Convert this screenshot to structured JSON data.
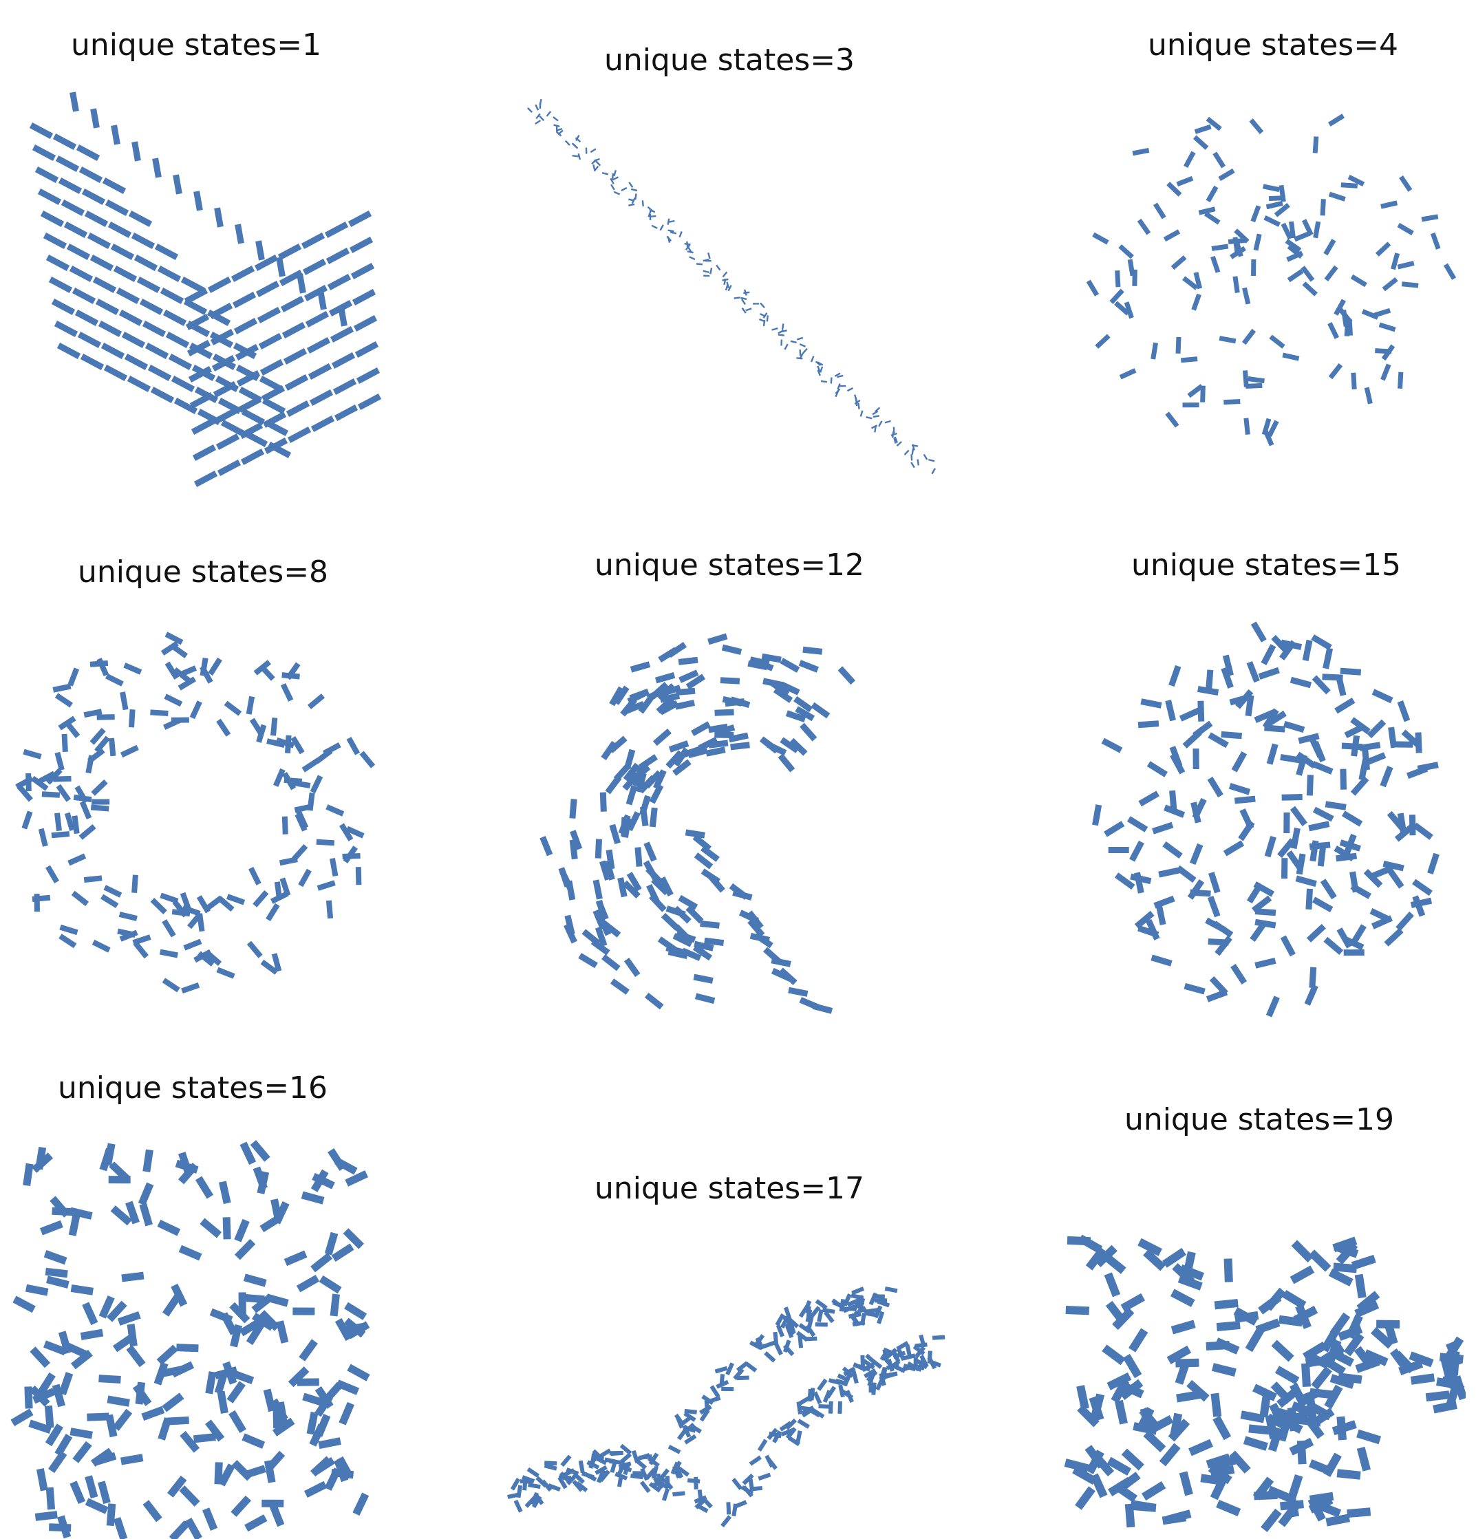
{
  "figure": {
    "mark_color": "#4a78b5",
    "background_color": "#ffffff",
    "panels": [
      {
        "title": "unique states=1",
        "pattern": "layered-stack",
        "seed": 11
      },
      {
        "title": "unique states=3",
        "pattern": "thin-diagonal-chain",
        "seed": 23
      },
      {
        "title": "unique states=4",
        "pattern": "loose-branching",
        "seed": 37
      },
      {
        "title": "unique states=8",
        "pattern": "ring",
        "seed": 41
      },
      {
        "title": "unique states=12",
        "pattern": "curved-fan",
        "seed": 53
      },
      {
        "title": "unique states=15",
        "pattern": "dense-blob",
        "seed": 67
      },
      {
        "title": "unique states=16",
        "pattern": "wide-cluster",
        "seed": 71
      },
      {
        "title": "unique states=17",
        "pattern": "double-band",
        "seed": 83
      },
      {
        "title": "unique states=19",
        "pattern": "arched-cluster",
        "seed": 97
      }
    ]
  }
}
